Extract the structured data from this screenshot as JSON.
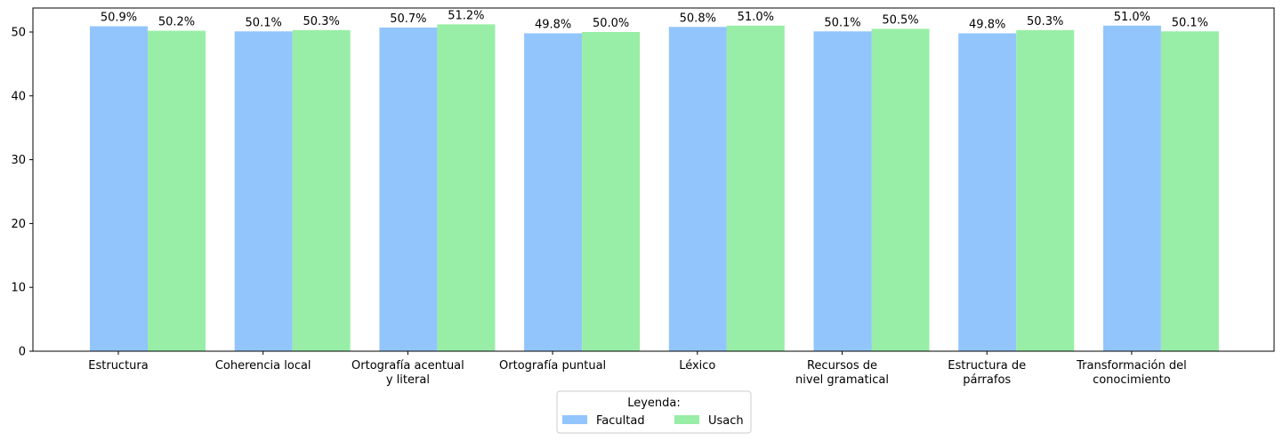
{
  "chart_data": {
    "type": "bar",
    "categories": [
      [
        "Estructura"
      ],
      [
        "Coherencia local"
      ],
      [
        "Ortografía acentual",
        "y literal"
      ],
      [
        "Ortografía puntual"
      ],
      [
        "Léxico"
      ],
      [
        "Recursos de",
        "nivel gramatical"
      ],
      [
        "Estructura de",
        "párrafos"
      ],
      [
        "Transformación del",
        "conocimiento"
      ]
    ],
    "series": [
      {
        "name": "Facultad",
        "color": "#92c5fc",
        "values": [
          50.9,
          50.1,
          50.7,
          49.8,
          50.8,
          50.1,
          49.8,
          51.0
        ],
        "labels": [
          "50.9%",
          "50.1%",
          "50.7%",
          "49.8%",
          "50.8%",
          "50.1%",
          "49.8%",
          "51.0%"
        ]
      },
      {
        "name": "Usach",
        "color": "#98eea6",
        "values": [
          50.2,
          50.3,
          51.2,
          50.0,
          51.0,
          50.5,
          50.3,
          50.1
        ],
        "labels": [
          "50.2%",
          "50.3%",
          "51.2%",
          "50.0%",
          "51.0%",
          "50.5%",
          "50.3%",
          "50.1%"
        ]
      }
    ],
    "yticks": [
      0,
      10,
      20,
      30,
      40,
      50
    ],
    "ylim": [
      0,
      53.76
    ],
    "legend": {
      "title": "Leyenda:",
      "placement": "bottom-center"
    },
    "grid": false
  }
}
